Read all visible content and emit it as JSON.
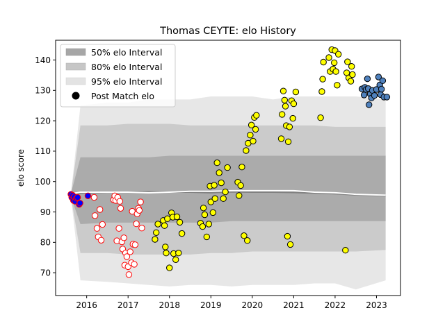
{
  "chart_data": {
    "type": "scatter",
    "title": "Thomas CEYTE: elo History",
    "xlabel": "",
    "ylabel": "elo score",
    "xlim": [
      2015.25,
      2023.58
    ],
    "ylim": [
      62.5,
      146.5
    ],
    "xticks": [
      2016,
      2017,
      2018,
      2019,
      2020,
      2021,
      2022,
      2023
    ],
    "yticks": [
      70,
      80,
      90,
      100,
      110,
      120,
      130,
      140
    ],
    "grid": false,
    "legend_position": "top-left",
    "legend": [
      {
        "label": "50% elo Interval",
        "kind": "patch",
        "color": "#a6a6a6"
      },
      {
        "label": "80% elo Interval",
        "kind": "patch",
        "color": "#c6c6c6"
      },
      {
        "label": "95% elo Interval",
        "kind": "patch",
        "color": "#e3e3e3"
      },
      {
        "label": "Post Match elo",
        "kind": "marker",
        "color": "#000000"
      }
    ],
    "bands": {
      "x": [
        2015.62,
        2015.85,
        2016.5,
        2017.0,
        2017.5,
        2018.0,
        2018.5,
        2019.0,
        2019.5,
        2020.0,
        2020.5,
        2021.0,
        2021.5,
        2022.0,
        2022.5,
        2023.22
      ],
      "b95": {
        "lower": [
          95,
          67.5,
          67,
          66.5,
          66,
          65.5,
          66,
          66,
          65.5,
          66,
          66,
          66,
          66.5,
          66.5,
          64.5,
          67.5
        ],
        "upper": [
          96,
          125,
          126,
          126,
          127,
          127,
          127,
          128,
          128,
          128,
          127,
          128,
          128,
          128,
          128,
          127
        ]
      },
      "b80": {
        "lower": [
          95,
          76.5,
          76.5,
          76,
          76,
          76,
          76,
          76.5,
          76.5,
          77,
          77,
          77,
          77,
          77,
          77,
          77.5
        ],
        "upper": [
          96,
          118.5,
          118.5,
          119,
          119,
          119,
          118.5,
          118.5,
          118.5,
          118.5,
          118.5,
          118.5,
          118.5,
          118,
          118,
          118
        ]
      },
      "b50": {
        "lower": [
          95,
          86,
          86.5,
          86.5,
          86.5,
          86.5,
          86.5,
          86.5,
          87,
          87,
          87,
          87,
          87,
          87,
          87,
          87
        ],
        "upper": [
          96,
          108,
          108,
          108,
          108,
          108.5,
          108.5,
          108.5,
          108.5,
          108.5,
          108.5,
          108.5,
          108.5,
          108.5,
          108.5,
          108.5
        ]
      },
      "line_mean": [
        96,
        96.5,
        96.5,
        96.5,
        96.3,
        96.5,
        96.8,
        96.8,
        97,
        97,
        97,
        97,
        96.5,
        96.3,
        95.8,
        95.5
      ],
      "line_dark": [
        95,
        96.2,
        96.5,
        96.5,
        96.7,
        96.5,
        96.5,
        96.3,
        96.6,
        96.5,
        96.5,
        96.4,
        96.2,
        96,
        95.6,
        95.3
      ]
    },
    "series": [
      {
        "style": "blue-fill red-edge",
        "color": "#0000ff",
        "points": [
          [
            2015.62,
            95.8
          ],
          [
            2015.64,
            94.8
          ],
          [
            2015.66,
            95.5
          ],
          [
            2015.68,
            93.8
          ],
          [
            2015.7,
            95
          ],
          [
            2015.72,
            93.5
          ],
          [
            2015.75,
            94.5
          ],
          [
            2015.78,
            94.8
          ],
          [
            2015.82,
            92.5
          ],
          [
            2015.84,
            92.9
          ],
          [
            2016.03,
            95.3
          ]
        ]
      },
      {
        "style": "white-fill red-edge",
        "color": "#ffffff",
        "points": [
          [
            2016.18,
            94.8
          ],
          [
            2016.2,
            88.8
          ],
          [
            2016.25,
            84.6
          ],
          [
            2016.28,
            81.8
          ],
          [
            2016.32,
            90.8
          ],
          [
            2016.35,
            80.7
          ],
          [
            2016.38,
            85.9
          ],
          [
            2016.65,
            94
          ],
          [
            2016.68,
            95.3
          ],
          [
            2016.7,
            93.8
          ],
          [
            2016.73,
            80.5
          ],
          [
            2016.75,
            94.8
          ],
          [
            2016.78,
            84.6
          ],
          [
            2016.8,
            93.5
          ],
          [
            2016.82,
            91.2
          ],
          [
            2016.85,
            80.2
          ],
          [
            2016.87,
            77.8
          ],
          [
            2016.9,
            81.5
          ],
          [
            2016.92,
            72.5
          ],
          [
            2016.94,
            76.5
          ],
          [
            2016.97,
            75.3
          ],
          [
            2017.0,
            72
          ],
          [
            2017.02,
            69.4
          ],
          [
            2017.05,
            76.9
          ],
          [
            2017.08,
            73.3
          ],
          [
            2017.1,
            90.2
          ],
          [
            2017.12,
            79.4
          ],
          [
            2017.15,
            72.8
          ],
          [
            2017.17,
            79.2
          ],
          [
            2017.2,
            86.1
          ],
          [
            2017.22,
            89.4
          ],
          [
            2017.25,
            91.2
          ],
          [
            2017.27,
            90.5
          ],
          [
            2017.3,
            93.3
          ],
          [
            2017.33,
            84.7
          ]
        ]
      },
      {
        "style": "yellow-fill black-edge",
        "color": "#ffff00",
        "points": [
          [
            2017.65,
            81
          ],
          [
            2017.68,
            83.2
          ],
          [
            2017.72,
            86
          ],
          [
            2017.85,
            87.2
          ],
          [
            2017.88,
            85.5
          ],
          [
            2017.9,
            78.5
          ],
          [
            2017.92,
            76.5
          ],
          [
            2017.95,
            87.8
          ],
          [
            2018.0,
            71.6
          ],
          [
            2018.05,
            89.7
          ],
          [
            2018.08,
            88.3
          ],
          [
            2018.1,
            76.3
          ],
          [
            2018.15,
            74.3
          ],
          [
            2018.18,
            88.4
          ],
          [
            2018.22,
            76.5
          ],
          [
            2018.25,
            86.6
          ],
          [
            2018.3,
            82.9
          ],
          [
            2018.75,
            86.3
          ],
          [
            2018.8,
            85.2
          ],
          [
            2018.82,
            91.3
          ],
          [
            2018.85,
            89.1
          ],
          [
            2018.9,
            81.8
          ],
          [
            2018.95,
            86
          ],
          [
            2018.98,
            98.5
          ],
          [
            2019.0,
            93.3
          ],
          [
            2019.05,
            89.8
          ],
          [
            2019.08,
            98.8
          ],
          [
            2019.1,
            94.4
          ],
          [
            2019.15,
            106.2
          ],
          [
            2019.2,
            102.9
          ],
          [
            2019.25,
            99.6
          ],
          [
            2019.3,
            94.4
          ],
          [
            2019.35,
            96.6
          ],
          [
            2019.4,
            104.6
          ],
          [
            2019.65,
            99.8
          ],
          [
            2019.68,
            95.4
          ],
          [
            2019.72,
            98.7
          ],
          [
            2019.75,
            104.8
          ],
          [
            2019.8,
            82.2
          ],
          [
            2019.85,
            110.2
          ],
          [
            2019.88,
            80.6
          ],
          [
            2019.9,
            112.6
          ],
          [
            2019.95,
            115.3
          ],
          [
            2019.98,
            118.6
          ],
          [
            2020.02,
            113.3
          ],
          [
            2020.05,
            121.1
          ],
          [
            2020.08,
            117.2
          ],
          [
            2020.1,
            121.8
          ],
          [
            2020.7,
            114.1
          ],
          [
            2020.72,
            122.1
          ],
          [
            2020.75,
            129.8
          ],
          [
            2020.78,
            126.8
          ],
          [
            2020.8,
            124.8
          ],
          [
            2020.82,
            118.4
          ],
          [
            2020.85,
            82
          ],
          [
            2020.87,
            113.1
          ],
          [
            2020.9,
            118
          ],
          [
            2020.92,
            79.3
          ],
          [
            2020.95,
            126.6
          ],
          [
            2020.98,
            120.8
          ],
          [
            2021.0,
            125.6
          ],
          [
            2021.05,
            129.5
          ],
          [
            2021.65,
            121
          ],
          [
            2021.68,
            129.6
          ],
          [
            2021.7,
            133.7
          ],
          [
            2021.72,
            139.3
          ],
          [
            2021.85,
            140.8
          ],
          [
            2021.88,
            136.2
          ],
          [
            2021.92,
            143.4
          ],
          [
            2021.95,
            137
          ],
          [
            2021.98,
            139.1
          ],
          [
            2022.0,
            143.1
          ],
          [
            2022.02,
            136.2
          ],
          [
            2022.05,
            131.7
          ],
          [
            2022.08,
            141.9
          ],
          [
            2022.25,
            77.4
          ],
          [
            2022.28,
            135.8
          ],
          [
            2022.3,
            139.4
          ],
          [
            2022.33,
            134.1
          ],
          [
            2022.38,
            133
          ],
          [
            2022.4,
            137.9
          ],
          [
            2022.42,
            135.2
          ]
        ]
      },
      {
        "style": "steelblue-fill black-edge",
        "color": "#4f81bd",
        "points": [
          [
            2022.65,
            130.5
          ],
          [
            2022.7,
            128.5
          ],
          [
            2022.72,
            131
          ],
          [
            2022.75,
            130.3
          ],
          [
            2022.78,
            133.8
          ],
          [
            2022.8,
            130.6
          ],
          [
            2022.82,
            125.3
          ],
          [
            2022.85,
            128.8
          ],
          [
            2022.88,
            127.5
          ],
          [
            2022.9,
            130
          ],
          [
            2022.95,
            128.3
          ],
          [
            2023.0,
            130.3
          ],
          [
            2023.05,
            134.4
          ],
          [
            2023.08,
            131.8
          ],
          [
            2023.1,
            128.6
          ],
          [
            2023.12,
            130.4
          ],
          [
            2023.15,
            133.2
          ],
          [
            2023.18,
            127.8
          ],
          [
            2023.25,
            127.8
          ]
        ]
      }
    ]
  }
}
